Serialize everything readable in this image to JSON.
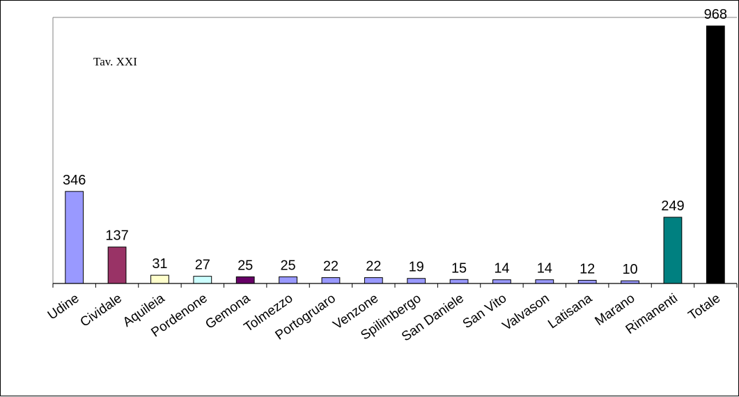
{
  "chart_data": {
    "type": "bar",
    "title": "",
    "annotation": "Tav. XXI",
    "xlabel": "",
    "ylabel": "",
    "ylim": [
      0,
      1000
    ],
    "grid": false,
    "legend": "none",
    "categories": [
      "Udine",
      "Cividale",
      "Aquileia",
      "Pordenone",
      "Gemona",
      "Tolmezzo",
      "Portogruaro",
      "Venzone",
      "Spilimbergo",
      "San Daniele",
      "San Vito",
      "Valvason",
      "Latisana",
      "Marano",
      "Rimanenti",
      "Totale"
    ],
    "values": [
      346,
      137,
      31,
      27,
      25,
      25,
      22,
      22,
      19,
      15,
      14,
      14,
      12,
      10,
      249,
      968
    ],
    "value_labels": [
      "346",
      "137",
      "31",
      "27",
      "25",
      "25",
      "22",
      "22",
      "19",
      "15",
      "14",
      "14",
      "12",
      "10",
      "249",
      "968"
    ],
    "colors": [
      "#9999ff",
      "#993366",
      "#ffffcc",
      "#ccffff",
      "#660066",
      "#9999ff",
      "#9999ff",
      "#9999ff",
      "#9999ff",
      "#9999ff",
      "#9999ff",
      "#9999ff",
      "#9999ff",
      "#9999ff",
      "#008080",
      "#000000"
    ]
  }
}
